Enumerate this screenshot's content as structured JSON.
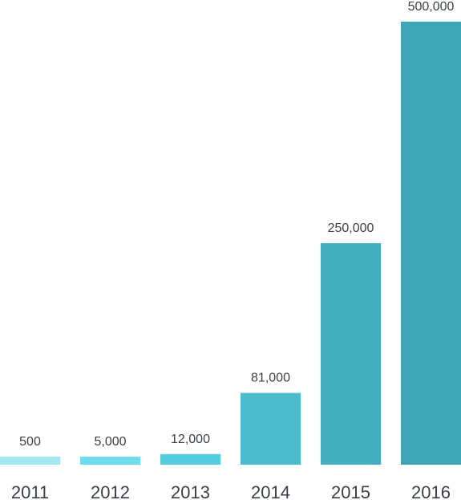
{
  "chart_data": {
    "type": "bar",
    "title": "",
    "xlabel": "",
    "ylabel": "",
    "categories": [
      "2011",
      "2012",
      "2013",
      "2014",
      "2015",
      "2016"
    ],
    "values": [
      500,
      5000,
      12000,
      81000,
      250000,
      500000
    ],
    "value_labels": [
      "500",
      "5,000",
      "12,000",
      "81,000",
      "250,000",
      "500,000"
    ],
    "colors": [
      "#a3e7f1",
      "#6cdcee",
      "#53cfe0",
      "#4abccd",
      "#44afbf",
      "#3ea6b5"
    ],
    "grid": false,
    "legend": "none"
  }
}
